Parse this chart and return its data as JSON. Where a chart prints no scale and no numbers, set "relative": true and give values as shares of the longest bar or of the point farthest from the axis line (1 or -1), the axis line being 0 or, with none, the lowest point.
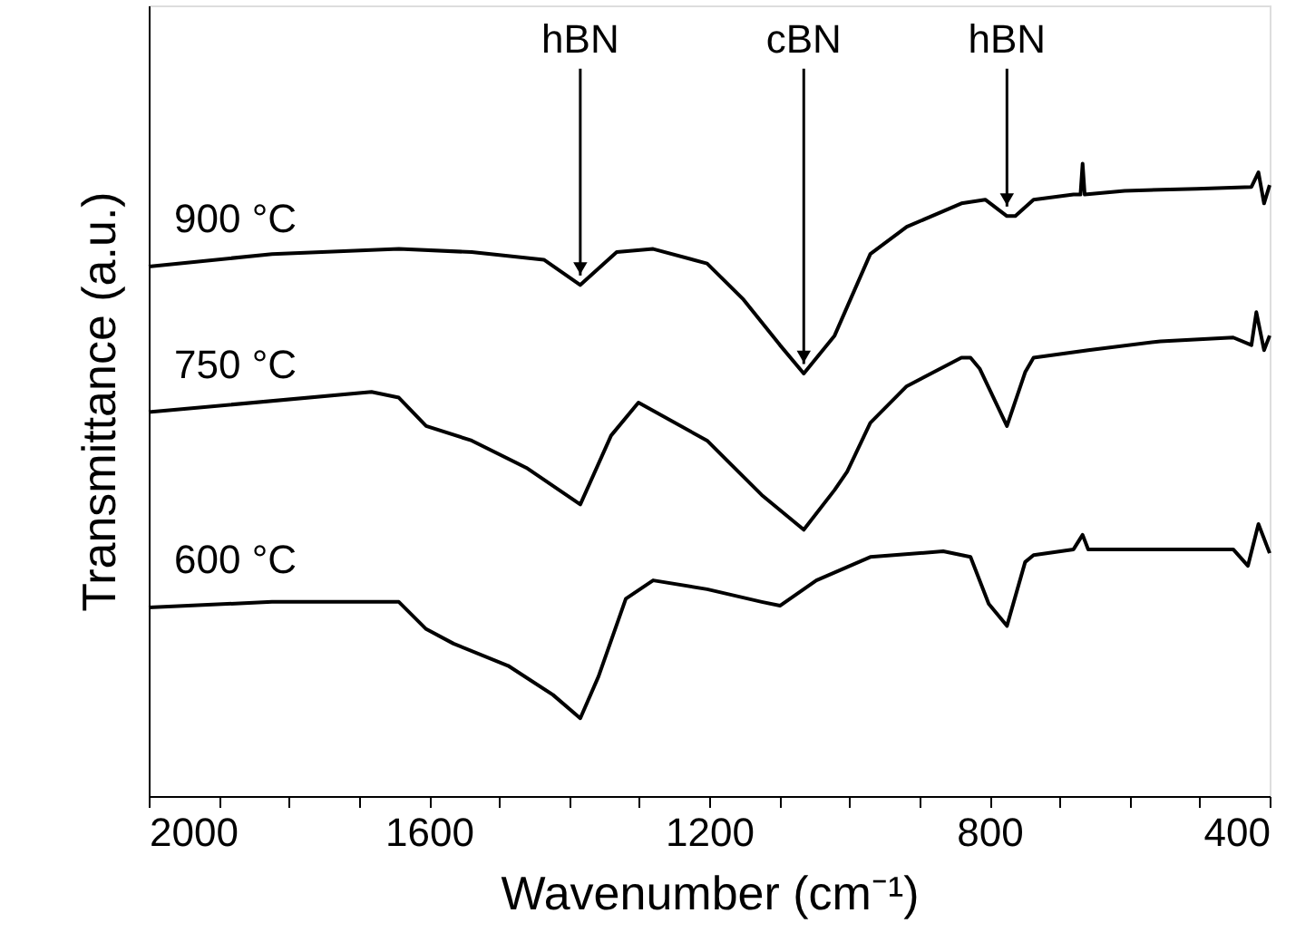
{
  "chart_data": {
    "type": "line",
    "relative": true,
    "xlabel": "Wavenumber (cm⁻¹)",
    "ylabel": "Transmittance (a.u.)",
    "xlim": [
      2000,
      400
    ],
    "xticks": [
      2000,
      {
        "value": 1900,
        "label": null
      },
      {
        "value": 1800,
        "label": null
      },
      {
        "value": 1700,
        "label": null
      },
      1600,
      {
        "value": 1500,
        "label": null
      },
      {
        "value": 1400,
        "label": null
      },
      {
        "value": 1300,
        "label": null
      },
      1200,
      {
        "value": 1100,
        "label": null
      },
      {
        "value": 1000,
        "label": null
      },
      {
        "value": 900,
        "label": null
      },
      800,
      {
        "value": 700,
        "label": null
      },
      {
        "value": 600,
        "label": null
      },
      {
        "value": 500,
        "label": null
      },
      400
    ],
    "grid": false,
    "marker": "none",
    "line_style": "solid",
    "tick_labels": "x",
    "series": [
      {
        "name": "900 °C",
        "color": "#000000",
        "x": [
          2000,
          1824,
          1643,
          1539,
          1436,
          1384,
          1332,
          1280,
          1203,
          1151,
          1099,
          1065,
          1021,
          970,
          918,
          840,
          806,
          775,
          763,
          737,
          680,
          670,
          667,
          664,
          607,
          504,
          426,
          416,
          408,
          400
        ],
        "values": [
          0.837,
          0.857,
          0.865,
          0.86,
          0.848,
          0.808,
          0.86,
          0.865,
          0.842,
          0.785,
          0.713,
          0.668,
          0.728,
          0.857,
          0.9,
          0.937,
          0.943,
          0.917,
          0.917,
          0.943,
          0.951,
          0.951,
          1.0,
          0.951,
          0.957,
          0.96,
          0.963,
          0.986,
          0.937,
          0.966
        ]
      },
      {
        "name": "750 °C",
        "color": "#000000",
        "x": [
          2000,
          1682,
          1643,
          1604,
          1539,
          1461,
          1384,
          1340,
          1301,
          1203,
          1125,
          1065,
          1021,
          1003,
          970,
          918,
          840,
          827,
          814,
          775,
          749,
          737,
          659,
          556,
          452,
          426,
          419,
          408,
          400
        ],
        "values": [
          0.607,
          0.639,
          0.63,
          0.585,
          0.562,
          0.519,
          0.461,
          0.57,
          0.622,
          0.562,
          0.476,
          0.421,
          0.484,
          0.513,
          0.59,
          0.648,
          0.693,
          0.693,
          0.676,
          0.585,
          0.67,
          0.693,
          0.705,
          0.719,
          0.725,
          0.713,
          0.765,
          0.705,
          0.728
        ]
      },
      {
        "name": "600 °C",
        "color": "#000000",
        "x": [
          2000,
          1824,
          1643,
          1604,
          1565,
          1487,
          1423,
          1384,
          1358,
          1319,
          1280,
          1203,
          1125,
          1099,
          1047,
          970,
          866,
          827,
          801,
          775,
          749,
          737,
          680,
          667,
          659,
          556,
          452,
          431,
          416,
          400
        ],
        "values": [
          0.298,
          0.307,
          0.307,
          0.264,
          0.241,
          0.206,
          0.16,
          0.123,
          0.189,
          0.312,
          0.341,
          0.327,
          0.307,
          0.301,
          0.341,
          0.378,
          0.387,
          0.378,
          0.304,
          0.269,
          0.37,
          0.381,
          0.39,
          0.413,
          0.39,
          0.39,
          0.39,
          0.364,
          0.43,
          0.384
        ]
      }
    ],
    "annotations": [
      {
        "text": "hBN",
        "x": 1384,
        "y": 0.808
      },
      {
        "text": "cBN",
        "x": 1065,
        "y": 0.668
      },
      {
        "text": "hBN",
        "x": 775,
        "y": 0.917
      }
    ]
  }
}
